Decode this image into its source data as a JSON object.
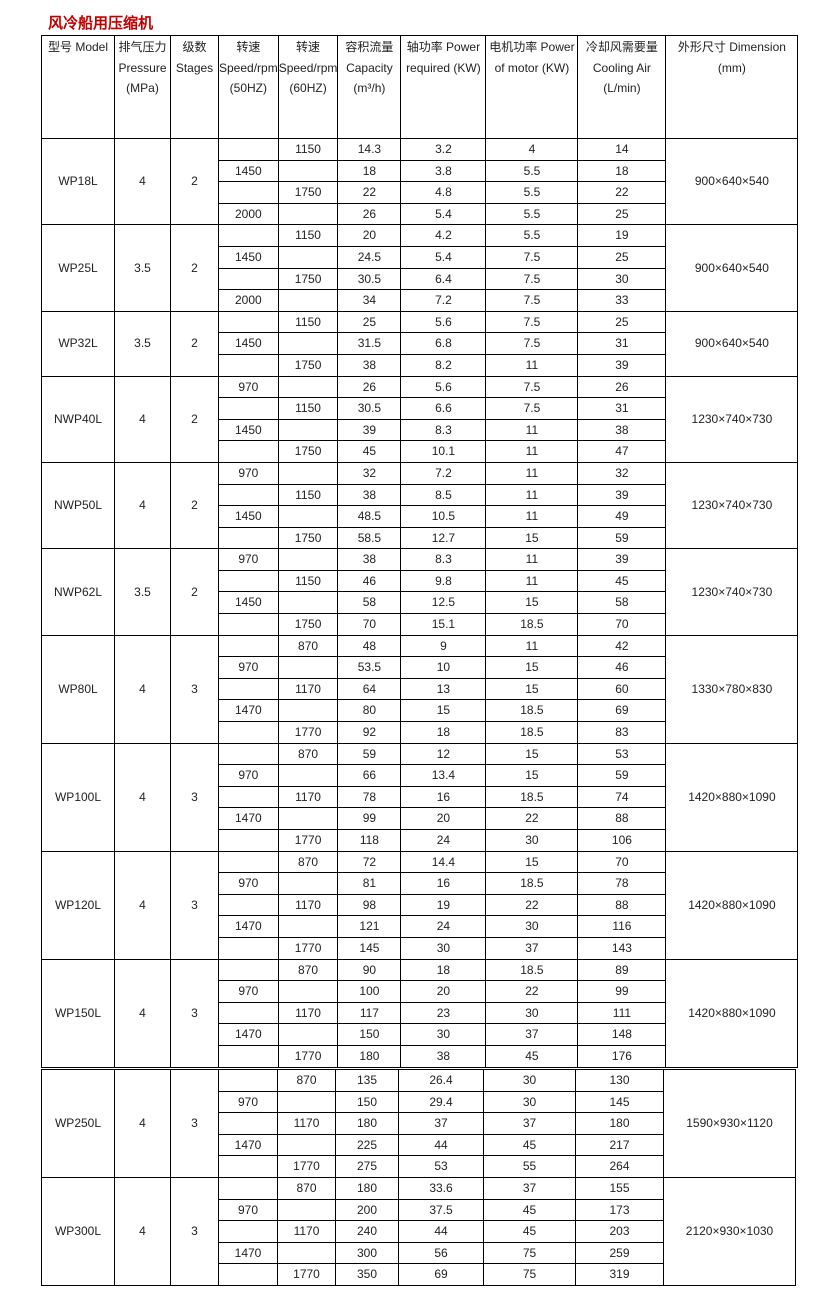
{
  "title": "风冷船用压缩机",
  "header": {
    "model": "型号 Model",
    "pressure": "排气压力 Pressure (MPa)",
    "stages": "级数 Stages",
    "speed50": "转速 Speed/rpm (50HZ)",
    "speed60": "转速 Speed/rpm (60HZ)",
    "capacity": "容积流量 Capacity (m³/h)",
    "power_required": "轴功率 Power required (KW)",
    "motor_power": "电机功率 Power of motor (KW)",
    "cooling_air": "冷却风需要量 Cooling Air (L/min)",
    "dimension": "外形尺寸 Dimension (mm)"
  },
  "columns": [
    "speed50",
    "speed60",
    "capacity",
    "power_required",
    "motor_power",
    "cooling_air"
  ],
  "tables": [
    [
      {
        "model": "WP18L",
        "pressure": "4",
        "stages": "2",
        "dimension": "900×640×540",
        "rows": [
          [
            "",
            "1150",
            "14.3",
            "3.2",
            "4",
            "14"
          ],
          [
            "1450",
            "",
            "18",
            "3.8",
            "5.5",
            "18"
          ],
          [
            "",
            "1750",
            "22",
            "4.8",
            "5.5",
            "22"
          ],
          [
            "2000",
            "",
            "26",
            "5.4",
            "5.5",
            "25"
          ]
        ]
      },
      {
        "model": "WP25L",
        "pressure": "3.5",
        "stages": "2",
        "dimension": "900×640×540",
        "rows": [
          [
            "",
            "1150",
            "20",
            "4.2",
            "5.5",
            "19"
          ],
          [
            "1450",
            "",
            "24.5",
            "5.4",
            "7.5",
            "25"
          ],
          [
            "",
            "1750",
            "30.5",
            "6.4",
            "7.5",
            "30"
          ],
          [
            "2000",
            "",
            "34",
            "7.2",
            "7.5",
            "33"
          ]
        ]
      },
      {
        "model": "WP32L",
        "pressure": "3.5",
        "stages": "2",
        "dimension": "900×640×540",
        "rows": [
          [
            "",
            "1150",
            "25",
            "5.6",
            "7.5",
            "25"
          ],
          [
            "1450",
            "",
            "31.5",
            "6.8",
            "7.5",
            "31"
          ],
          [
            "",
            "1750",
            "38",
            "8.2",
            "11",
            "39"
          ]
        ]
      },
      {
        "model": "NWP40L",
        "pressure": "4",
        "stages": "2",
        "dimension": "1230×740×730",
        "rows": [
          [
            "970",
            "",
            "26",
            "5.6",
            "7.5",
            "26"
          ],
          [
            "",
            "1150",
            "30.5",
            "6.6",
            "7.5",
            "31"
          ],
          [
            "1450",
            "",
            "39",
            "8.3",
            "11",
            "38"
          ],
          [
            "",
            "1750",
            "45",
            "10.1",
            "11",
            "47"
          ]
        ]
      },
      {
        "model": "NWP50L",
        "pressure": "4",
        "stages": "2",
        "dimension": "1230×740×730",
        "rows": [
          [
            "970",
            "",
            "32",
            "7.2",
            "11",
            "32"
          ],
          [
            "",
            "1150",
            "38",
            "8.5",
            "11",
            "39"
          ],
          [
            "1450",
            "",
            "48.5",
            "10.5",
            "11",
            "49"
          ],
          [
            "",
            "1750",
            "58.5",
            "12.7",
            "15",
            "59"
          ]
        ]
      },
      {
        "model": "NWP62L",
        "pressure": "3.5",
        "stages": "2",
        "dimension": "1230×740×730",
        "rows": [
          [
            "970",
            "",
            "38",
            "8.3",
            "11",
            "39"
          ],
          [
            "",
            "1150",
            "46",
            "9.8",
            "11",
            "45"
          ],
          [
            "1450",
            "",
            "58",
            "12.5",
            "15",
            "58"
          ],
          [
            "",
            "1750",
            "70",
            "15.1",
            "18.5",
            "70"
          ]
        ]
      },
      {
        "model": "WP80L",
        "pressure": "4",
        "stages": "3",
        "dimension": "1330×780×830",
        "rows": [
          [
            "",
            "870",
            "48",
            "9",
            "11",
            "42"
          ],
          [
            "970",
            "",
            "53.5",
            "10",
            "15",
            "46"
          ],
          [
            "",
            "1170",
            "64",
            "13",
            "15",
            "60"
          ],
          [
            "1470",
            "",
            "80",
            "15",
            "18.5",
            "69"
          ],
          [
            "",
            "1770",
            "92",
            "18",
            "18.5",
            "83"
          ]
        ]
      },
      {
        "model": "WP100L",
        "pressure": "4",
        "stages": "3",
        "dimension": "1420×880×1090",
        "rows": [
          [
            "",
            "870",
            "59",
            "12",
            "15",
            "53"
          ],
          [
            "970",
            "",
            "66",
            "13.4",
            "15",
            "59"
          ],
          [
            "",
            "1170",
            "78",
            "16",
            "18.5",
            "74"
          ],
          [
            "1470",
            "",
            "99",
            "20",
            "22",
            "88"
          ],
          [
            "",
            "1770",
            "118",
            "24",
            "30",
            "106"
          ]
        ]
      },
      {
        "model": "WP120L",
        "pressure": "4",
        "stages": "3",
        "dimension": "1420×880×1090",
        "rows": [
          [
            "",
            "870",
            "72",
            "14.4",
            "15",
            "70"
          ],
          [
            "970",
            "",
            "81",
            "16",
            "18.5",
            "78"
          ],
          [
            "",
            "1170",
            "98",
            "19",
            "22",
            "88"
          ],
          [
            "1470",
            "",
            "121",
            "24",
            "30",
            "116"
          ],
          [
            "",
            "1770",
            "145",
            "30",
            "37",
            "143"
          ]
        ]
      },
      {
        "model": "WP150L",
        "pressure": "4",
        "stages": "3",
        "dimension": "1420×880×1090",
        "rows": [
          [
            "",
            "870",
            "90",
            "18",
            "18.5",
            "89"
          ],
          [
            "970",
            "",
            "100",
            "20",
            "22",
            "99"
          ],
          [
            "",
            "1170",
            "117",
            "23",
            "30",
            "111"
          ],
          [
            "1470",
            "",
            "150",
            "30",
            "37",
            "148"
          ],
          [
            "",
            "1770",
            "180",
            "38",
            "45",
            "176"
          ]
        ]
      }
    ],
    [
      {
        "model": "WP250L",
        "pressure": "4",
        "stages": "3",
        "dimension": "1590×930×1120",
        "rows": [
          [
            "",
            "870",
            "135",
            "26.4",
            "30",
            "130"
          ],
          [
            "970",
            "",
            "150",
            "29.4",
            "30",
            "145"
          ],
          [
            "",
            "1170",
            "180",
            "37",
            "37",
            "180"
          ],
          [
            "1470",
            "",
            "225",
            "44",
            "45",
            "217"
          ],
          [
            "",
            "1770",
            "275",
            "53",
            "55",
            "264"
          ]
        ]
      },
      {
        "model": "WP300L",
        "pressure": "4",
        "stages": "3",
        "dimension": "2120×930×1030",
        "rows": [
          [
            "",
            "870",
            "180",
            "33.6",
            "37",
            "155"
          ],
          [
            "970",
            "",
            "200",
            "37.5",
            "45",
            "173"
          ],
          [
            "",
            "1170",
            "240",
            "44",
            "45",
            "203"
          ],
          [
            "1470",
            "",
            "300",
            "56",
            "75",
            "259"
          ],
          [
            "",
            "1770",
            "350",
            "69",
            "75",
            "319"
          ]
        ]
      }
    ]
  ]
}
